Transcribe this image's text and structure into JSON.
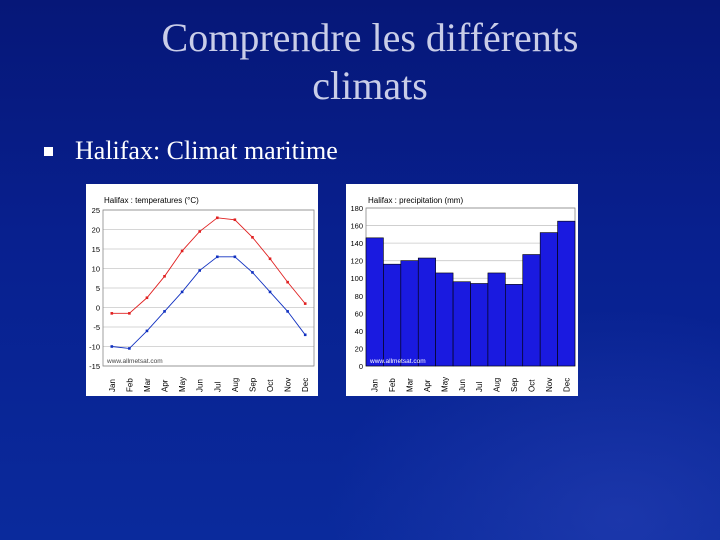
{
  "slide": {
    "title_line1": "Comprendre les différents",
    "title_line2": "climats",
    "bullet": "Halifax: Climat maritime"
  },
  "colors": {
    "max_temp": "#e02020",
    "min_temp": "#1030c0",
    "precip_bar": "#1a1ae0"
  },
  "chart_data": [
    {
      "type": "line",
      "title": "Halifax : temperatures (°C)",
      "categories": [
        "Jan",
        "Feb",
        "Mar",
        "Apr",
        "May",
        "Jun",
        "Jul",
        "Aug",
        "Sep",
        "Oct",
        "Nov",
        "Dec"
      ],
      "series": [
        {
          "values": [
            -1.5,
            -1.5,
            2.5,
            8,
            14.5,
            19.5,
            23,
            22.5,
            18,
            12.5,
            6.5,
            1
          ]
        },
        {
          "values": [
            -10,
            -10.5,
            -6,
            -1,
            4,
            9.5,
            13,
            13,
            9,
            4,
            -1,
            -7
          ]
        }
      ],
      "ylim": [
        -15,
        25
      ],
      "yticks": [
        25,
        20,
        15,
        10,
        5,
        0,
        -5,
        -10,
        -15
      ],
      "watermark": "www.allmetsat.com",
      "grid": true
    },
    {
      "type": "bar",
      "title": "Halifax : precipitation (mm)",
      "categories": [
        "Jan",
        "Feb",
        "Mar",
        "Apr",
        "May",
        "Jun",
        "Jul",
        "Aug",
        "Sep",
        "Oct",
        "Nov",
        "Dec"
      ],
      "values": [
        146,
        116,
        120,
        123,
        106,
        96,
        94,
        106,
        93,
        127,
        152,
        165
      ],
      "ylim": [
        0,
        180
      ],
      "yticks": [
        180,
        160,
        140,
        120,
        100,
        80,
        60,
        40,
        20,
        0
      ],
      "watermark": "www.allmetsat.com",
      "grid": true
    }
  ]
}
